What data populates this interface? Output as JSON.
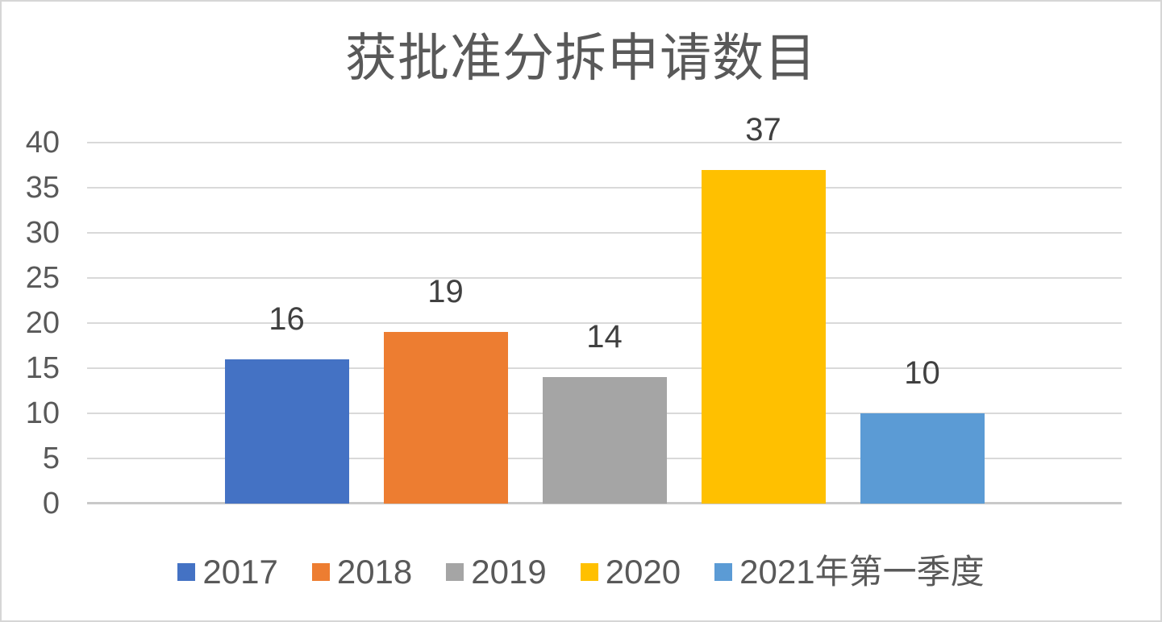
{
  "chart_data": {
    "type": "bar",
    "title": "获批准分拆申请数目",
    "series": [
      {
        "name": "2017",
        "value": 16,
        "color": "#4472C4"
      },
      {
        "name": "2018",
        "value": 19,
        "color": "#ED7D31"
      },
      {
        "name": "2019",
        "value": 14,
        "color": "#A5A5A5"
      },
      {
        "name": "2020",
        "value": 37,
        "color": "#FFC000"
      },
      {
        "name": "2021年第一季度",
        "value": 10,
        "color": "#5B9BD5"
      }
    ],
    "data_labels": [
      16,
      19,
      14,
      37,
      10
    ],
    "ylabel": "",
    "xlabel": "",
    "ylim": [
      0,
      40
    ],
    "yticks": [
      0,
      5,
      10,
      15,
      20,
      25,
      30,
      35,
      40
    ],
    "grid": true,
    "legend_position": "bottom"
  },
  "colors": {
    "gridline": "#d9d9d9",
    "axis_line": "#c9c9c9",
    "tick_text": "#595959",
    "data_label_text": "#404040",
    "title_text": "#595959",
    "legend_text": "#595959",
    "canvas_border": "#d6d6d6",
    "background": "#ffffff"
  }
}
